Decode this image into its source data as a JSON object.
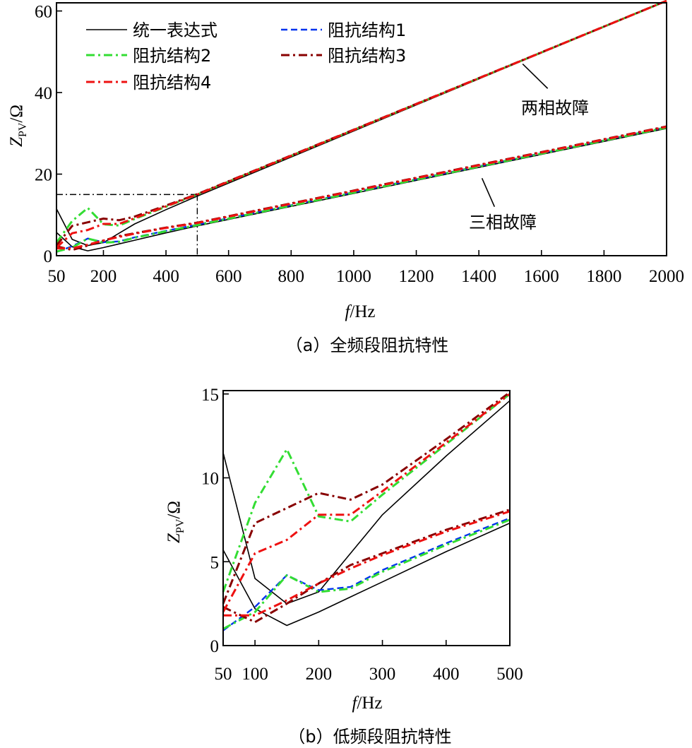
{
  "series_styles": [
    {
      "color": "#000000",
      "dash": "",
      "width": 1.6
    },
    {
      "color": "#0033ee",
      "dash": "9,5",
      "width": 2.4
    },
    {
      "color": "#33dd33",
      "dash": "12,5,3,5",
      "width": 3
    },
    {
      "color": "#880000",
      "dash": "12,5,3,5",
      "width": 3
    },
    {
      "color": "#ee1111",
      "dash": "12,5,3,5",
      "width": 3
    }
  ],
  "chart_data": [
    {
      "type": "line",
      "caption": "（a）全频段阻抗特性",
      "xlabel_italic": "f",
      "xlabel_rest": "/Hz",
      "ylabel": "Z",
      "ylabel_sub": "PV",
      "ylabel_unit": "/Ω",
      "xlim": [
        50,
        2000
      ],
      "ylim": [
        0,
        62
      ],
      "xticks": [
        50,
        200,
        400,
        600,
        800,
        1000,
        1200,
        1400,
        1600,
        1800,
        2000
      ],
      "yticks": [
        0,
        20,
        40,
        60
      ],
      "legend": [
        "统一表达式",
        "阻抗结构1",
        "阻抗结构2",
        "阻抗结构3",
        "阻抗结构4"
      ],
      "annotations": [
        {
          "text": "两相故障",
          "anchor": {
            "x": 1540,
            "y": 47
          },
          "tip": {
            "x": 1620,
            "y": 41
          }
        },
        {
          "text": "三相故障",
          "anchor": {
            "x": 1410,
            "y": 19
          },
          "tip": {
            "x": 1450,
            "y": 12
          }
        }
      ],
      "guide": {
        "x": 500,
        "y": 15
      },
      "series": [
        {
          "name": "统一表达式",
          "x": [
            50,
            100,
            150,
            200,
            250,
            300,
            400,
            500,
            2000
          ],
          "y": [
            11.5,
            4.0,
            2.5,
            3.2,
            5.5,
            7.8,
            11.3,
            14.6,
            62.5
          ]
        },
        {
          "name": "统一表达式",
          "x": [
            50,
            100,
            150,
            200,
            250,
            300,
            400,
            500,
            2000
          ],
          "y": [
            5.7,
            2.2,
            1.2,
            2.0,
            2.9,
            3.8,
            5.6,
            7.3,
            31.2
          ]
        },
        {
          "name": "阻抗结构1",
          "x": [
            50,
            100,
            150,
            200,
            250,
            300,
            400,
            500,
            2000
          ],
          "y": [
            0.9,
            2.3,
            4.2,
            3.3,
            3.5,
            4.5,
            6.1,
            7.6,
            31.5
          ]
        },
        {
          "name": "阻抗结构2",
          "x": [
            50,
            100,
            150,
            200,
            250,
            300,
            400,
            500,
            2000
          ],
          "y": [
            3.2,
            8.5,
            11.7,
            7.7,
            7.4,
            9.0,
            12.0,
            15.0,
            62.5
          ]
        },
        {
          "name": "阻抗结构2",
          "x": [
            50,
            100,
            150,
            200,
            250,
            300,
            400,
            500,
            2000
          ],
          "y": [
            1.0,
            2.0,
            4.2,
            3.2,
            3.4,
            4.4,
            6.0,
            7.5,
            31.4
          ]
        },
        {
          "name": "阻抗结构3",
          "x": [
            50,
            100,
            150,
            200,
            250,
            300,
            400,
            500,
            2000
          ],
          "y": [
            2.5,
            7.3,
            8.2,
            9.1,
            8.7,
            9.6,
            12.3,
            15.1,
            62.5
          ]
        },
        {
          "name": "阻抗结构3",
          "x": [
            50,
            100,
            150,
            200,
            250,
            300,
            400,
            500,
            2000
          ],
          "y": [
            2.3,
            1.4,
            2.5,
            3.7,
            4.8,
            5.5,
            6.9,
            8.1,
            31.7
          ]
        },
        {
          "name": "阻抗结构4",
          "x": [
            50,
            100,
            150,
            200,
            250,
            300,
            400,
            500,
            2000
          ],
          "y": [
            2.0,
            5.5,
            6.3,
            7.8,
            7.8,
            9.2,
            12.1,
            15.0,
            62.5
          ]
        },
        {
          "name": "阻抗结构4",
          "x": [
            50,
            100,
            150,
            200,
            250,
            300,
            400,
            500,
            2000
          ],
          "y": [
            1.8,
            1.8,
            2.7,
            3.7,
            4.6,
            5.4,
            6.8,
            8.0,
            31.6
          ]
        }
      ]
    },
    {
      "type": "line",
      "caption": "（b）低频段阻抗特性",
      "xlabel_italic": "f",
      "xlabel_rest": "/Hz",
      "ylabel": "Z",
      "ylabel_sub": "PV",
      "ylabel_unit": "/Ω",
      "xlim": [
        50,
        500
      ],
      "ylim": [
        0,
        15.2
      ],
      "xticks": [
        50,
        100,
        200,
        300,
        400,
        500
      ],
      "yticks": [
        0,
        5,
        10,
        15
      ],
      "series": [
        {
          "name": "统一表达式",
          "x": [
            50,
            100,
            150,
            200,
            250,
            300,
            400,
            500
          ],
          "y": [
            11.5,
            4.0,
            2.5,
            3.2,
            5.5,
            7.8,
            11.3,
            14.6
          ]
        },
        {
          "name": "统一表达式",
          "x": [
            50,
            100,
            150,
            200,
            250,
            300,
            400,
            500
          ],
          "y": [
            5.7,
            2.2,
            1.2,
            2.0,
            2.9,
            3.8,
            5.6,
            7.3
          ]
        },
        {
          "name": "阻抗结构1",
          "x": [
            50,
            100,
            150,
            200,
            250,
            300,
            400,
            500
          ],
          "y": [
            0.9,
            2.3,
            4.2,
            3.3,
            3.5,
            4.5,
            6.1,
            7.6
          ]
        },
        {
          "name": "阻抗结构2",
          "x": [
            50,
            100,
            150,
            200,
            250,
            300,
            400,
            500
          ],
          "y": [
            3.2,
            8.5,
            11.7,
            7.7,
            7.4,
            9.0,
            12.0,
            15.0
          ]
        },
        {
          "name": "阻抗结构2",
          "x": [
            50,
            100,
            150,
            200,
            250,
            300,
            400,
            500
          ],
          "y": [
            1.0,
            2.0,
            4.2,
            3.2,
            3.4,
            4.4,
            6.0,
            7.5
          ]
        },
        {
          "name": "阻抗结构3",
          "x": [
            50,
            100,
            150,
            200,
            250,
            300,
            400,
            500
          ],
          "y": [
            2.5,
            7.3,
            8.2,
            9.1,
            8.7,
            9.6,
            12.3,
            15.1
          ]
        },
        {
          "name": "阻抗结构3",
          "x": [
            50,
            100,
            150,
            200,
            250,
            300,
            400,
            500
          ],
          "y": [
            2.3,
            1.4,
            2.5,
            3.7,
            4.8,
            5.5,
            6.9,
            8.1
          ]
        },
        {
          "name": "阻抗结构4",
          "x": [
            50,
            100,
            150,
            200,
            250,
            300,
            400,
            500
          ],
          "y": [
            2.0,
            5.5,
            6.3,
            7.8,
            7.8,
            9.2,
            12.1,
            15.0
          ]
        },
        {
          "name": "阻抗结构4",
          "x": [
            50,
            100,
            150,
            200,
            250,
            300,
            400,
            500
          ],
          "y": [
            1.8,
            1.8,
            2.7,
            3.7,
            4.6,
            5.4,
            6.8,
            8.0
          ]
        }
      ]
    }
  ]
}
